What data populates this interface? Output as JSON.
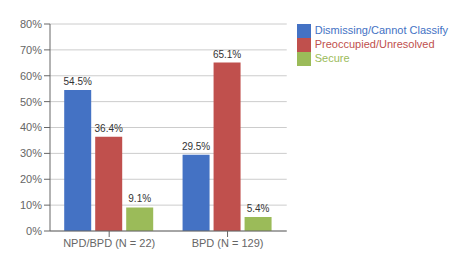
{
  "chart_data": {
    "type": "bar",
    "categories": [
      "NPD/BPD (N = 22)",
      "BPD (N = 129)"
    ],
    "series": [
      {
        "name": "Dismissing/Cannot Classify",
        "color": "#4472C4",
        "values": [
          54.5,
          29.5
        ],
        "value_labels": [
          "54.5%",
          "29.5%"
        ]
      },
      {
        "name": "Preoccupied/Unresolved",
        "color": "#C0504D",
        "values": [
          36.4,
          65.1
        ],
        "value_labels": [
          "36.4%",
          "65.1%"
        ]
      },
      {
        "name": "Secure",
        "color": "#9BBB59",
        "values": [
          9.1,
          5.4
        ],
        "value_labels": [
          "9.1%",
          "5.4%"
        ]
      }
    ],
    "ylim": [
      0,
      80
    ],
    "yticks": [
      {
        "value": 0,
        "label": "0%"
      },
      {
        "value": 10,
        "label": "10%"
      },
      {
        "value": 20,
        "label": "20%"
      },
      {
        "value": 30,
        "label": "30%"
      },
      {
        "value": 40,
        "label": "40%"
      },
      {
        "value": 50,
        "label": "50%"
      },
      {
        "value": 60,
        "label": "60%"
      },
      {
        "value": 70,
        "label": "70%"
      },
      {
        "value": 80,
        "label": "80%"
      }
    ],
    "grid": true,
    "legend": "upper right",
    "data_labels": true
  }
}
